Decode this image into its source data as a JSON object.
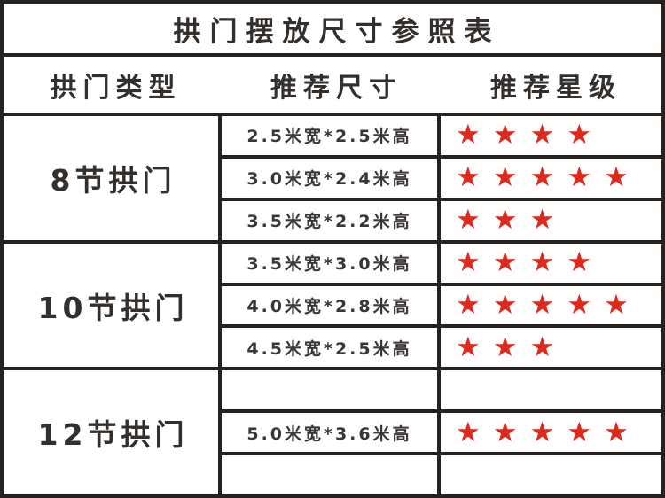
{
  "title": "拱门摆放尺寸参照表",
  "columns": [
    "拱门类型",
    "推荐尺寸",
    "推荐星级"
  ],
  "star_color": "#dd2a1e",
  "border_color": "#262220",
  "sections": [
    {
      "type": "8节拱门",
      "rows": [
        {
          "size": "2.5米宽*2.5米高",
          "stars": 4,
          "stars_text": "★★★★"
        },
        {
          "size": "3.0米宽*2.4米高",
          "stars": 5,
          "stars_text": "★★★★★"
        },
        {
          "size": "3.5米宽*2.2米高",
          "stars": 3,
          "stars_text": "★★★"
        }
      ]
    },
    {
      "type": "10节拱门",
      "rows": [
        {
          "size": "3.5米宽*3.0米高",
          "stars": 4,
          "stars_text": "★★★★"
        },
        {
          "size": "4.0米宽*2.8米高",
          "stars": 5,
          "stars_text": "★★★★★"
        },
        {
          "size": "4.5米宽*2.5米高",
          "stars": 3,
          "stars_text": "★★★"
        }
      ]
    },
    {
      "type": "12节拱门",
      "rows": [
        {
          "size": "",
          "stars": 0,
          "stars_text": ""
        },
        {
          "size": "5.0米宽*3.6米高",
          "stars": 5,
          "stars_text": "★★★★★"
        },
        {
          "size": "",
          "stars": 0,
          "stars_text": ""
        }
      ]
    }
  ]
}
